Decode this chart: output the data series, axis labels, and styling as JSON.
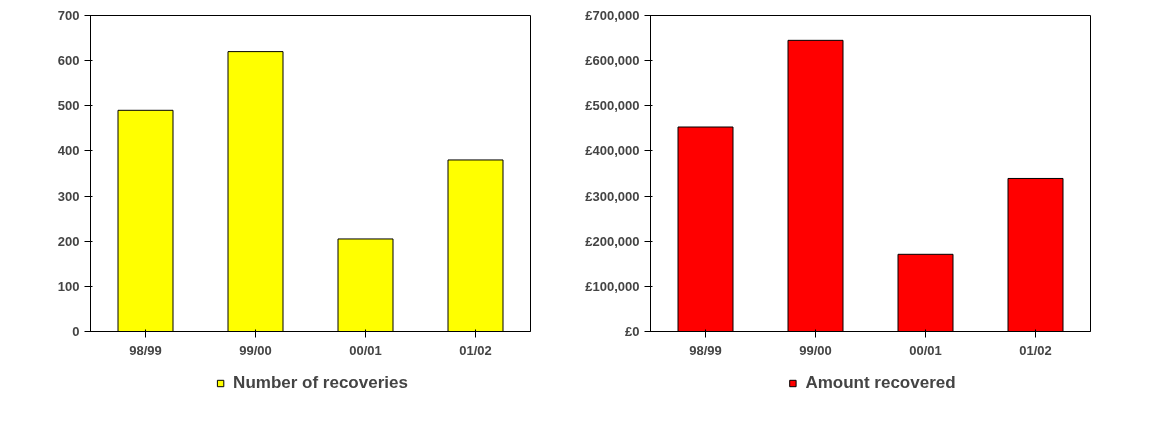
{
  "chart_data": [
    {
      "type": "bar",
      "categories": [
        "98/99",
        "99/00",
        "00/01",
        "01/02"
      ],
      "series": [
        {
          "name": "Number of recoveries",
          "color": "#ffff00",
          "values": [
            490,
            620,
            205,
            380
          ]
        }
      ],
      "ylim": [
        0,
        700
      ],
      "yticks": [
        0,
        100,
        200,
        300,
        400,
        500,
        600,
        700
      ],
      "legend": "bottom"
    },
    {
      "type": "bar",
      "categories": [
        "98/99",
        "99/00",
        "00/01",
        "01/02"
      ],
      "series": [
        {
          "name": "Amount recovered",
          "color": "#ff0000",
          "values": [
            453000,
            645000,
            171000,
            339000
          ]
        }
      ],
      "ylim": [
        0,
        700000
      ],
      "yticks": [
        {
          "value": 0,
          "label": "£0"
        },
        {
          "value": 100000,
          "label": "£100,000"
        },
        {
          "value": 200000,
          "label": "£200,000"
        },
        {
          "value": 300000,
          "label": "£300,000"
        },
        {
          "value": 400000,
          "label": "£400,000"
        },
        {
          "value": 500000,
          "label": "£500,000"
        },
        {
          "value": 600000,
          "label": "£600,000"
        },
        {
          "value": 700000,
          "label": "£700,000"
        }
      ],
      "legend": "bottom"
    }
  ]
}
